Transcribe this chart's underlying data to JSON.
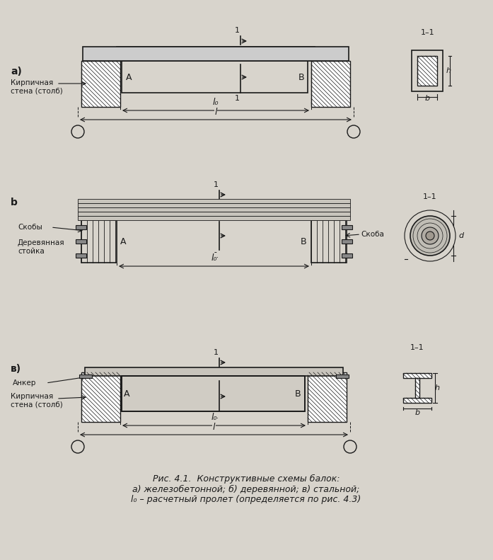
{
  "bg_color": "#d8d4cc",
  "line_color": "#1a1a1a",
  "hatch_color": "#1a1a1a",
  "fill_light": "#e8e4dc",
  "fill_dark": "#555555",
  "title_text": "Рис. 4.1.  Конструктивные схемы балок:",
  "subtitle1": "а) железобетонной; б) деревянной; в) стальной;",
  "subtitle2": "l₀ – расчетный пролет (определяется по рис. 4.3)",
  "label_a": "а)",
  "label_b": "b",
  "label_v": "в)",
  "label_kirp1": "Кирпичная\nстена (столб)",
  "label_kirp2": "Кирпичная\nстена (столб)",
  "label_skoby": "Скобы",
  "label_skoba": "Скоба",
  "label_derev": "Деревянная\nстойка",
  "label_anker": "Анкер",
  "label_A": "А",
  "label_B": "В",
  "label_l0": "l₀",
  "label_l": "l",
  "label_11_top": "1–1",
  "label_1_left": "1",
  "label_1_right": "1",
  "label_h": "h",
  "label_d": "d"
}
